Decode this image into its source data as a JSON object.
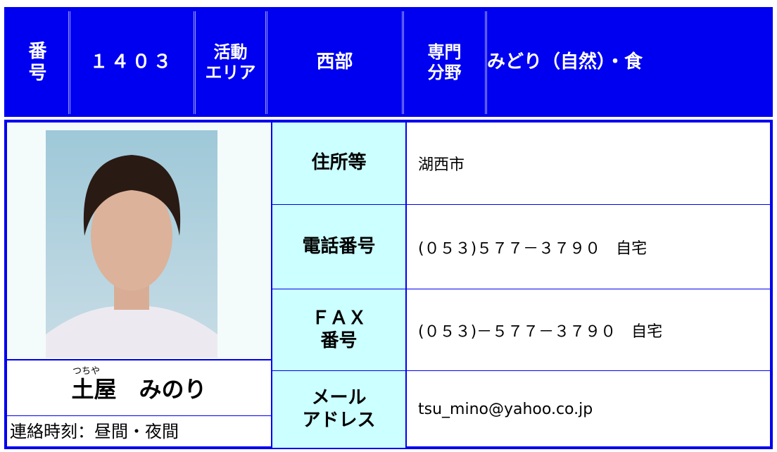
{
  "header": {
    "cells": [
      {
        "lines": [
          "番",
          "号"
        ]
      },
      {
        "lines": [
          "１４０３"
        ]
      },
      {
        "lines": [
          "活動",
          "エリア"
        ]
      },
      {
        "lines": [
          "西部"
        ]
      },
      {
        "lines": [
          "専門",
          "分野"
        ]
      },
      {
        "lines": [
          "みどり（自然）・食"
        ]
      }
    ]
  },
  "profile": {
    "ruby": "つちや",
    "surname": "土屋",
    "given": "みのり",
    "contact": "連絡時刻：昼間・夜間"
  },
  "table": {
    "rows": [
      {
        "label": [
          "住所等"
        ],
        "value": "湖西市"
      },
      {
        "label": [
          "電話番号"
        ],
        "value": "(０５３)５７７－３７９０　自宅"
      },
      {
        "label": [
          "ＦＡＸ",
          "番号"
        ],
        "value": "(０５３)－５７７－３７９０　自宅"
      },
      {
        "label": [
          "メール",
          "アドレス"
        ],
        "value": "tsu_mino@yahoo.co.jp"
      }
    ]
  }
}
